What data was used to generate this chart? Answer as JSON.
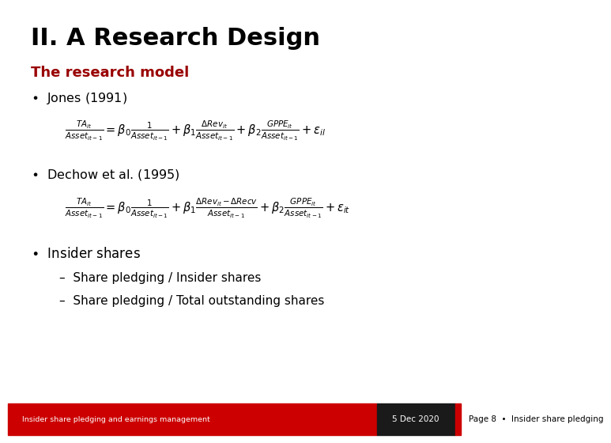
{
  "title": "II. A Research Design",
  "title_color": "#000000",
  "title_fontsize": 22,
  "subtitle": "The research model",
  "subtitle_color": "#990000",
  "subtitle_fontsize": 13,
  "bg_color": "#ffffff",
  "bullet1": "Jones (1991)",
  "bullet2": "Dechow et al. (1995)",
  "bullet3": "Insider shares",
  "subbullet1": "Share pledging / Insider shares",
  "subbullet2": "Share pledging / Total outstanding shares",
  "footer_left": "Insider share pledging and earnings management",
  "footer_center": "5 Dec 2020",
  "footer_right": "Page 8  •  Insider share pledging",
  "footer_left_bg": "#cc0000",
  "footer_center_bg": "#1a1a1a",
  "footer_text_color": "#ffffff",
  "footer_right_text_color": "#000000",
  "red_stripe_color": "#cc0000"
}
